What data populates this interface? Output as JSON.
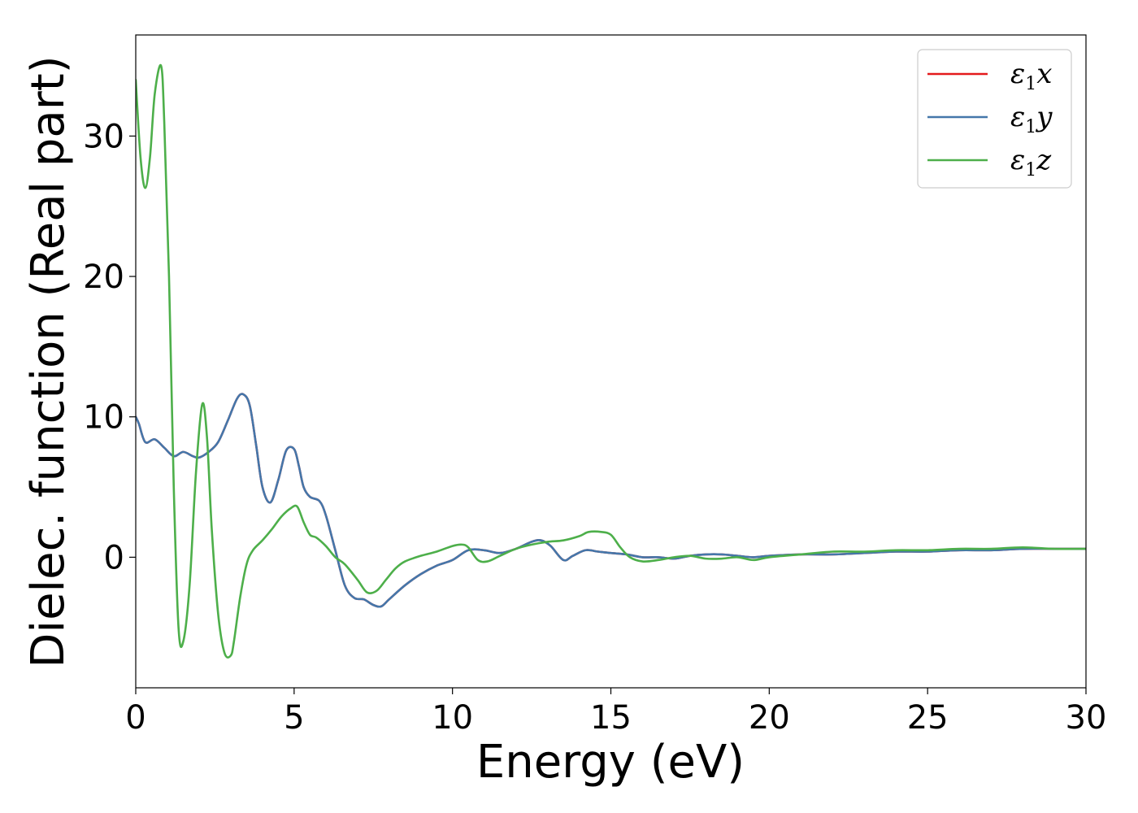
{
  "chart_data": {
    "type": "line",
    "xlabel": "Energy (eV)",
    "ylabel": "Dielec. function (Real part)",
    "xlim": [
      0,
      30
    ],
    "ylim": [
      -9.3,
      37.2
    ],
    "xticks": [
      "0",
      "5",
      "10",
      "15",
      "20",
      "25",
      "30"
    ],
    "yticks": [
      "0",
      "10",
      "20",
      "30"
    ],
    "xtick_values": [
      0,
      5,
      10,
      15,
      20,
      25,
      30
    ],
    "ytick_values": [
      0,
      10,
      20,
      30
    ],
    "grid": false,
    "legend_position": "top-right",
    "series": [
      {
        "name": "ε1x",
        "legend_symbol": "ε",
        "legend_sub": "1",
        "legend_var": "x",
        "color": "#e41a1c",
        "x": [
          0,
          0.1,
          0.3,
          0.6,
          0.9,
          1.2,
          1.5,
          1.8,
          2.0,
          2.3,
          2.6,
          2.9,
          3.2,
          3.4,
          3.6,
          3.8,
          4.0,
          4.25,
          4.5,
          4.75,
          5.0,
          5.15,
          5.3,
          5.5,
          5.8,
          6.0,
          6.3,
          6.6,
          6.9,
          7.2,
          7.5,
          7.75,
          8.0,
          8.5,
          9.0,
          9.5,
          10.0,
          10.5,
          11.0,
          11.5,
          12.0,
          12.5,
          12.8,
          13.1,
          13.5,
          13.8,
          14.2,
          14.6,
          15.0,
          15.5,
          16.0,
          16.5,
          17.0,
          17.5,
          18.0,
          18.5,
          19.0,
          19.5,
          20.0,
          21.0,
          22.0,
          23.0,
          24.0,
          25.0,
          26.0,
          27.0,
          28.0,
          29.0,
          30.0
        ],
        "y": [
          10.0,
          9.5,
          8.2,
          8.4,
          7.8,
          7.2,
          7.5,
          7.2,
          7.1,
          7.5,
          8.2,
          9.7,
          11.3,
          11.6,
          10.8,
          8.0,
          5.0,
          3.9,
          5.5,
          7.6,
          7.7,
          6.5,
          5.0,
          4.3,
          4.0,
          3.0,
          0.5,
          -2.0,
          -2.9,
          -3.0,
          -3.4,
          -3.5,
          -3.0,
          -2.0,
          -1.2,
          -0.6,
          -0.2,
          0.5,
          0.5,
          0.3,
          0.6,
          1.1,
          1.2,
          0.8,
          -0.2,
          0.1,
          0.5,
          0.4,
          0.3,
          0.2,
          0.0,
          0.0,
          -0.1,
          0.1,
          0.2,
          0.2,
          0.1,
          0.0,
          0.1,
          0.2,
          0.2,
          0.3,
          0.4,
          0.4,
          0.5,
          0.5,
          0.6,
          0.6,
          0.6
        ]
      },
      {
        "name": "ε1y",
        "legend_symbol": "ε",
        "legend_sub": "1",
        "legend_var": "y",
        "color": "#4477aa",
        "x": [
          0,
          0.1,
          0.3,
          0.6,
          0.9,
          1.2,
          1.5,
          1.8,
          2.0,
          2.3,
          2.6,
          2.9,
          3.2,
          3.4,
          3.6,
          3.8,
          4.0,
          4.25,
          4.5,
          4.75,
          5.0,
          5.15,
          5.3,
          5.5,
          5.8,
          6.0,
          6.3,
          6.6,
          6.9,
          7.2,
          7.5,
          7.75,
          8.0,
          8.5,
          9.0,
          9.5,
          10.0,
          10.5,
          11.0,
          11.5,
          12.0,
          12.5,
          12.8,
          13.1,
          13.5,
          13.8,
          14.2,
          14.6,
          15.0,
          15.5,
          16.0,
          16.5,
          17.0,
          17.5,
          18.0,
          18.5,
          19.0,
          19.5,
          20.0,
          21.0,
          22.0,
          23.0,
          24.0,
          25.0,
          26.0,
          27.0,
          28.0,
          29.0,
          30.0
        ],
        "y": [
          10.0,
          9.5,
          8.2,
          8.4,
          7.8,
          7.2,
          7.5,
          7.2,
          7.1,
          7.5,
          8.2,
          9.7,
          11.3,
          11.6,
          10.8,
          8.0,
          5.0,
          3.9,
          5.5,
          7.6,
          7.7,
          6.5,
          5.0,
          4.3,
          4.0,
          3.0,
          0.5,
          -2.0,
          -2.9,
          -3.0,
          -3.4,
          -3.5,
          -3.0,
          -2.0,
          -1.2,
          -0.6,
          -0.2,
          0.5,
          0.5,
          0.3,
          0.6,
          1.1,
          1.2,
          0.8,
          -0.2,
          0.1,
          0.5,
          0.4,
          0.3,
          0.2,
          0.0,
          0.0,
          -0.1,
          0.1,
          0.2,
          0.2,
          0.1,
          0.0,
          0.1,
          0.2,
          0.2,
          0.3,
          0.4,
          0.4,
          0.5,
          0.5,
          0.6,
          0.6,
          0.6
        ]
      },
      {
        "name": "ε1z",
        "legend_symbol": "ε",
        "legend_sub": "1",
        "legend_var": "z",
        "color": "#4daf4a",
        "x": [
          0,
          0.15,
          0.3,
          0.45,
          0.6,
          0.8,
          0.9,
          1.05,
          1.2,
          1.35,
          1.5,
          1.7,
          1.9,
          2.1,
          2.25,
          2.4,
          2.6,
          2.8,
          3.0,
          3.1,
          3.3,
          3.5,
          3.7,
          4.0,
          4.3,
          4.6,
          4.9,
          5.1,
          5.3,
          5.5,
          5.7,
          6.0,
          6.3,
          6.6,
          7.0,
          7.3,
          7.6,
          7.9,
          8.2,
          8.5,
          9.0,
          9.5,
          10.0,
          10.3,
          10.5,
          10.8,
          11.1,
          11.5,
          12.0,
          12.5,
          13.0,
          13.5,
          14.0,
          14.3,
          14.7,
          15.0,
          15.3,
          15.6,
          16.0,
          16.5,
          17.0,
          17.5,
          18.0,
          18.5,
          19.0,
          19.5,
          20.0,
          21.0,
          22.0,
          23.0,
          24.0,
          25.0,
          26.0,
          27.0,
          28.0,
          29.0,
          30.0
        ],
        "y": [
          34.0,
          28.5,
          26.3,
          28.5,
          33.0,
          35.0,
          31.0,
          20.0,
          5.0,
          -5.0,
          -6.0,
          -2.0,
          6.0,
          10.9,
          8.5,
          2.0,
          -4.0,
          -6.8,
          -7.0,
          -6.0,
          -2.8,
          -0.5,
          0.5,
          1.2,
          2.0,
          2.9,
          3.5,
          3.6,
          2.5,
          1.6,
          1.4,
          0.8,
          0.0,
          -0.5,
          -1.6,
          -2.5,
          -2.4,
          -1.6,
          -0.8,
          -0.3,
          0.1,
          0.4,
          0.8,
          0.9,
          0.7,
          -0.2,
          -0.3,
          0.1,
          0.6,
          0.9,
          1.1,
          1.2,
          1.5,
          1.8,
          1.8,
          1.6,
          0.7,
          0.0,
          -0.3,
          -0.2,
          0.0,
          0.1,
          -0.1,
          -0.1,
          0.0,
          -0.2,
          0.0,
          0.2,
          0.4,
          0.4,
          0.5,
          0.5,
          0.6,
          0.6,
          0.7,
          0.6,
          0.6
        ]
      }
    ]
  }
}
